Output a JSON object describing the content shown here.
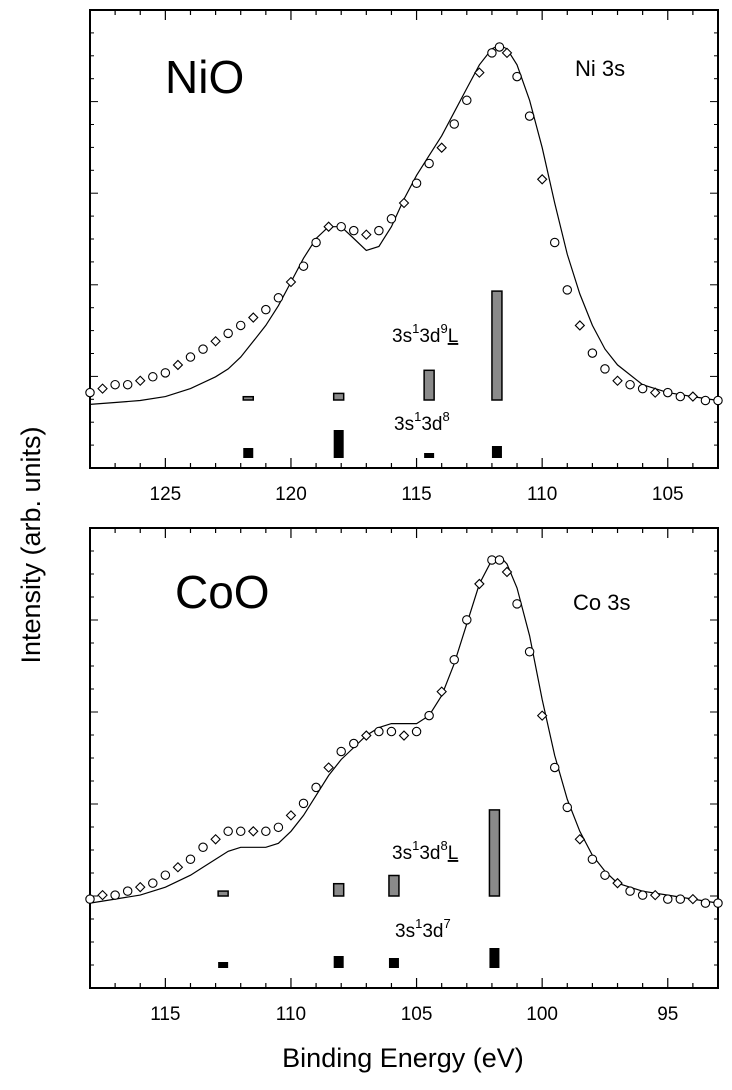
{
  "figure": {
    "ylabel": "Intensity (arb. units)",
    "xlabel": "Binding Energy (eV)"
  },
  "chart_data": [
    {
      "type": "scatter",
      "compound": "NiO",
      "core_level": "Ni 3s",
      "xlim": [
        128,
        103
      ],
      "x_ticks": [
        125,
        120,
        115,
        110,
        105
      ],
      "x_tick_labels": [
        "125",
        "120",
        "115",
        "110",
        "105"
      ],
      "ylim": [
        0,
        1.0
      ],
      "config_labels": {
        "upper_main": "3s",
        "upper_sup1": "1",
        "upper_mid": "3d",
        "upper_sup2": "9",
        "upper_ligand": "L",
        "lower_main": "3s",
        "lower_sup1": "1",
        "lower_mid": "3d",
        "lower_sup2": "8"
      },
      "series": [
        {
          "kind": "experiment",
          "x": [
            128.0,
            127.5,
            127.0,
            126.5,
            126.0,
            125.5,
            125.0,
            124.5,
            124.0,
            123.5,
            123.0,
            122.5,
            122.0,
            121.5,
            121.0,
            120.5,
            120.0,
            119.5,
            119.0,
            118.5,
            118.0,
            117.5,
            117.0,
            116.5,
            116.0,
            115.5,
            115.0,
            114.5,
            114.0,
            113.5,
            113.0,
            112.5,
            112.0,
            111.7,
            111.4,
            111.0,
            110.5,
            110.0,
            109.5,
            109.0,
            108.5,
            108.0,
            107.5,
            107.0,
            106.5,
            106.0,
            105.5,
            105.0,
            104.5,
            104.0,
            103.5,
            103.0
          ],
          "y": [
            0.12,
            0.13,
            0.14,
            0.14,
            0.15,
            0.16,
            0.17,
            0.19,
            0.21,
            0.23,
            0.25,
            0.27,
            0.29,
            0.31,
            0.33,
            0.36,
            0.4,
            0.44,
            0.5,
            0.54,
            0.54,
            0.53,
            0.52,
            0.53,
            0.56,
            0.6,
            0.65,
            0.7,
            0.74,
            0.8,
            0.86,
            0.93,
            0.98,
            0.995,
            0.98,
            0.92,
            0.82,
            0.66,
            0.5,
            0.38,
            0.29,
            0.22,
            0.18,
            0.15,
            0.14,
            0.13,
            0.12,
            0.12,
            0.11,
            0.11,
            0.1,
            0.1
          ]
        },
        {
          "kind": "calculation",
          "x": [
            128.0,
            127.0,
            126.0,
            125.0,
            124.0,
            123.0,
            122.5,
            122.0,
            121.5,
            121.0,
            120.5,
            120.0,
            119.5,
            119.0,
            118.5,
            118.0,
            117.5,
            117.0,
            116.5,
            116.0,
            115.5,
            115.0,
            114.5,
            114.0,
            113.5,
            113.0,
            112.5,
            112.0,
            111.7,
            111.4,
            111.0,
            110.5,
            110.0,
            109.5,
            109.0,
            108.5,
            108.0,
            107.5,
            107.0,
            106.0,
            105.0,
            104.0,
            103.0
          ],
          "y": [
            0.09,
            0.095,
            0.1,
            0.11,
            0.13,
            0.16,
            0.18,
            0.21,
            0.25,
            0.29,
            0.34,
            0.4,
            0.46,
            0.51,
            0.54,
            0.54,
            0.51,
            0.48,
            0.49,
            0.54,
            0.61,
            0.67,
            0.72,
            0.77,
            0.83,
            0.89,
            0.95,
            0.99,
            1.0,
            0.99,
            0.95,
            0.86,
            0.74,
            0.6,
            0.47,
            0.37,
            0.29,
            0.23,
            0.19,
            0.14,
            0.12,
            0.11,
            0.1
          ]
        }
      ],
      "multiplets": {
        "ligand": [
          {
            "x": 121.7,
            "height": 0.01
          },
          {
            "x": 118.1,
            "height": 0.02
          },
          {
            "x": 114.5,
            "height": 0.09
          },
          {
            "x": 111.8,
            "height": 0.33
          }
        ],
        "unscreened": [
          {
            "x": 121.7,
            "height": 0.05
          },
          {
            "x": 118.1,
            "height": 0.14
          },
          {
            "x": 114.5,
            "height": 0.025
          },
          {
            "x": 111.8,
            "height": 0.06
          }
        ]
      }
    },
    {
      "type": "scatter",
      "compound": "CoO",
      "core_level": "Co 3s",
      "xlim": [
        118,
        93
      ],
      "x_ticks": [
        115,
        110,
        105,
        100,
        95
      ],
      "x_tick_labels": [
        "115",
        "110",
        "105",
        "100",
        "95"
      ],
      "ylim": [
        0,
        1.0
      ],
      "config_labels": {
        "upper_main": "3s",
        "upper_sup1": "1",
        "upper_mid": "3d",
        "upper_sup2": "8",
        "upper_ligand": "L",
        "lower_main": "3s",
        "lower_sup1": "1",
        "lower_mid": "3d",
        "lower_sup2": "7"
      },
      "series": [
        {
          "kind": "experiment",
          "x": [
            118.0,
            117.5,
            117.0,
            116.5,
            116.0,
            115.5,
            115.0,
            114.5,
            114.0,
            113.5,
            113.0,
            112.5,
            112.0,
            111.5,
            111.0,
            110.5,
            110.0,
            109.5,
            109.0,
            108.5,
            108.0,
            107.5,
            107.0,
            106.5,
            106.0,
            105.5,
            105.0,
            104.5,
            104.0,
            103.5,
            103.0,
            102.5,
            102.0,
            101.7,
            101.4,
            101.0,
            100.5,
            100.0,
            99.5,
            99.0,
            98.5,
            98.0,
            97.5,
            97.0,
            96.5,
            96.0,
            95.5,
            95.0,
            94.5,
            94.0,
            93.5,
            93.0
          ],
          "y": [
            0.14,
            0.15,
            0.15,
            0.16,
            0.17,
            0.18,
            0.2,
            0.22,
            0.24,
            0.27,
            0.29,
            0.31,
            0.31,
            0.31,
            0.31,
            0.32,
            0.35,
            0.38,
            0.42,
            0.47,
            0.51,
            0.53,
            0.55,
            0.56,
            0.56,
            0.55,
            0.56,
            0.6,
            0.66,
            0.74,
            0.84,
            0.93,
            0.99,
            0.99,
            0.96,
            0.88,
            0.76,
            0.6,
            0.47,
            0.37,
            0.29,
            0.24,
            0.2,
            0.18,
            0.16,
            0.15,
            0.15,
            0.14,
            0.14,
            0.14,
            0.13,
            0.13
          ]
        },
        {
          "kind": "calculation",
          "x": [
            118.0,
            117.0,
            116.0,
            115.0,
            114.0,
            113.5,
            113.0,
            112.5,
            112.0,
            111.5,
            111.0,
            110.5,
            110.0,
            109.5,
            109.0,
            108.5,
            108.0,
            107.5,
            107.0,
            106.5,
            106.0,
            105.5,
            105.0,
            104.5,
            104.0,
            103.5,
            103.0,
            102.5,
            102.0,
            101.7,
            101.4,
            101.0,
            100.5,
            100.0,
            99.5,
            99.0,
            98.5,
            98.0,
            97.5,
            97.0,
            96.0,
            95.0,
            94.0,
            93.0
          ],
          "y": [
            0.13,
            0.14,
            0.15,
            0.17,
            0.2,
            0.22,
            0.24,
            0.26,
            0.27,
            0.27,
            0.27,
            0.28,
            0.31,
            0.35,
            0.4,
            0.45,
            0.49,
            0.52,
            0.55,
            0.57,
            0.58,
            0.58,
            0.58,
            0.6,
            0.65,
            0.73,
            0.83,
            0.93,
            0.99,
            1.0,
            0.98,
            0.92,
            0.8,
            0.64,
            0.5,
            0.39,
            0.31,
            0.25,
            0.21,
            0.18,
            0.16,
            0.15,
            0.14,
            0.13
          ]
        }
      ],
      "multiplets": {
        "ligand": [
          {
            "x": 112.7,
            "height": 0.012
          },
          {
            "x": 108.1,
            "height": 0.03
          },
          {
            "x": 105.9,
            "height": 0.05
          },
          {
            "x": 101.9,
            "height": 0.21
          }
        ],
        "unscreened": [
          {
            "x": 112.7,
            "height": 0.03
          },
          {
            "x": 108.1,
            "height": 0.06
          },
          {
            "x": 105.9,
            "height": 0.05
          },
          {
            "x": 101.9,
            "height": 0.1
          }
        ]
      }
    }
  ]
}
